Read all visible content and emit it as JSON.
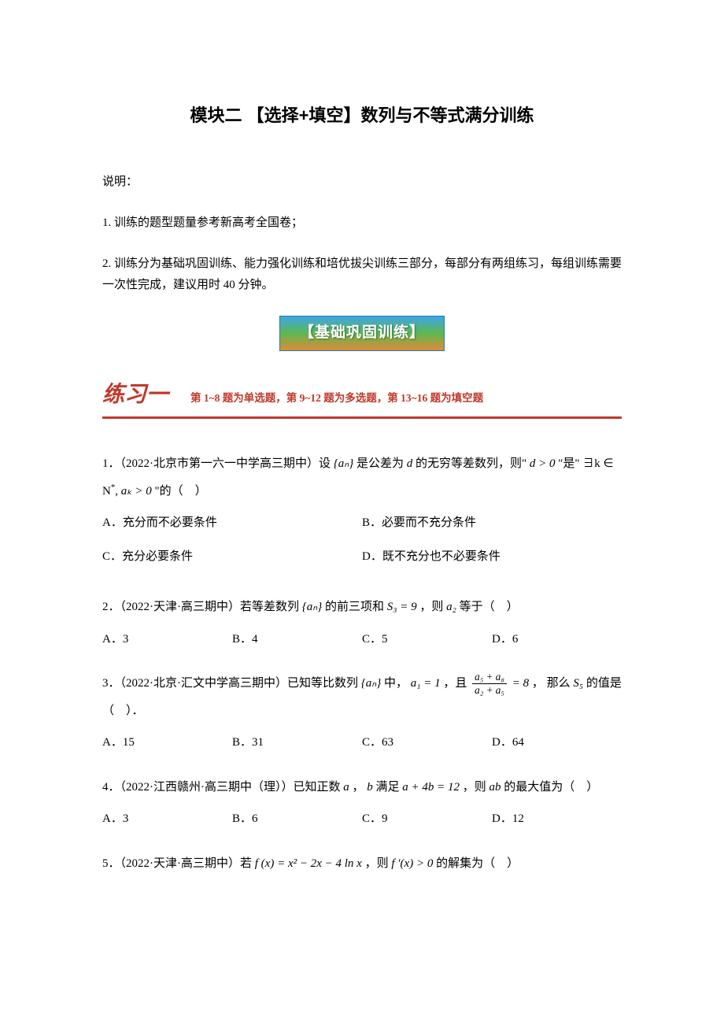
{
  "colors": {
    "text": "#000000",
    "accent": "#c0392b",
    "background": "#ffffff",
    "banner_gradient_top": "#3da5e8",
    "banner_gradient_mid": "#5db84f",
    "banner_gradient_bottom": "#e08a3a",
    "banner_text": "#ffffff"
  },
  "title": "模块二  【选择+填空】数列与不等式满分训练",
  "instructions": {
    "heading": "说明：",
    "line1": "1. 训练的题型题量参考新高考全国卷；",
    "line2": "2. 训练分为基础巩固训练、能力强化训练和培优拔尖训练三部分，每部分有两组练习，每组训练需要一次性完成，建议用时 40 分钟。"
  },
  "section_banner": "【基础巩固训练】",
  "practice1": {
    "title": "练习一",
    "subtitle": "第 1~8 题为单选题，第 9~12 题为多选题，第 13~16 题为填空题"
  },
  "questions": {
    "q1": {
      "prefix": "1．（2022·北京市第一六一中学高三期中）设",
      "seq": "{aₙ}",
      "mid1": "是公差为",
      "var_d": "d",
      "mid2": " 的无穷等差数列，则\"",
      "cond1": "d > 0",
      "mid3": " \"是\"",
      "cond2_pre": "∃k ∈ N",
      "cond2_sup": "*",
      "cond2_post": ", aₖ > 0",
      "suffix": " \"的（　）",
      "choices": {
        "A": "A．充分而不必要条件",
        "B": "B．必要而不充分条件",
        "C": "C．充分必要条件",
        "D": "D．既不充分也不必要条件"
      }
    },
    "q2": {
      "prefix": "2．（2022·天津·高三期中）若等差数列",
      "seq": "{aₙ}",
      "mid1": "的前三项和",
      "sum": "S₃ = 9",
      "mid2": " ，则 ",
      "term": "a₂",
      "suffix": " 等于（　）",
      "choices": {
        "A": "A．3",
        "B": "B．4",
        "C": "C．5",
        "D": "D．6"
      }
    },
    "q3": {
      "prefix": "3．（2022·北京·汇文中学高三期中）已知等比数列",
      "seq": "{aₙ}",
      "mid1": "中，",
      "a1": "a₁ = 1",
      "mid2": " ，且 ",
      "frac_num": "a₅ + a₈",
      "frac_den": "a₂ + a₅",
      "eq": " = 8",
      "mid3": " ， 那么 ",
      "sum": "S₅",
      "suffix": " 的值是（　）．",
      "choices": {
        "A": "A．15",
        "B": "B．31",
        "C": "C．63",
        "D": "D．64"
      }
    },
    "q4": {
      "prefix": "4．（2022·江西赣州·高三期中（理））已知正数",
      "var_a": "a",
      "mid1": " ，",
      "var_b": "b",
      "mid2": " 满足 ",
      "eq": "a + 4b = 12",
      "mid3": " ，则 ",
      "prod": "ab",
      "suffix": " 的最大值为（　）",
      "choices": {
        "A": "A．3",
        "B": "B．6",
        "C": "C．9",
        "D": "D．12"
      }
    },
    "q5": {
      "prefix": "5．（2022·天津·高三期中）若 ",
      "fx": "f (x) = x² − 2x − 4 ln x",
      "mid1": " ，则 ",
      "fpx": "f ′(x) > 0",
      "suffix": " 的解集为（　）"
    }
  }
}
